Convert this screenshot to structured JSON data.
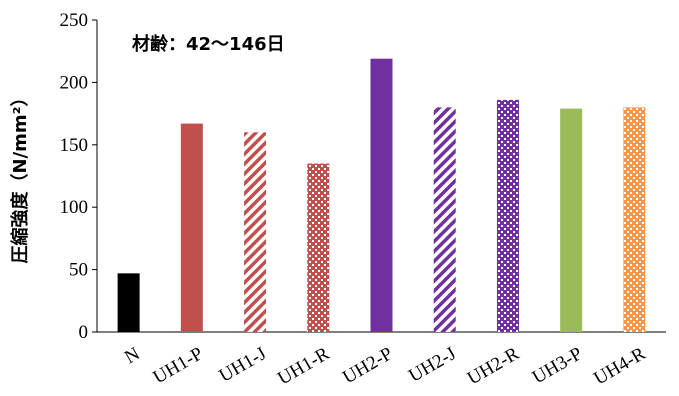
{
  "chart_data": {
    "type": "bar",
    "annotation": "材齢：42〜146日",
    "ylabel": "圧縮強度（N/mm²）",
    "ylim": [
      0,
      250
    ],
    "yticks": [
      0,
      50,
      100,
      150,
      200,
      250
    ],
    "grid": false,
    "categories": [
      "N",
      "UH1-P",
      "UH1-J",
      "UH1-R",
      "UH2-P",
      "UH2-J",
      "UH2-R",
      "UH3-P",
      "UH4-R"
    ],
    "values": [
      47,
      167,
      160,
      135,
      219,
      180,
      186,
      179,
      180
    ],
    "bar_fills": [
      "solid",
      "solid",
      "diagonal",
      "checker",
      "solid",
      "diagonal",
      "checker",
      "solid",
      "checker"
    ],
    "bar_colors": [
      "#000000",
      "#c0504d",
      "#c0504d",
      "#c0504d",
      "#7030a0",
      "#7030a0",
      "#7030a0",
      "#9bbb59",
      "#f79646"
    ]
  }
}
